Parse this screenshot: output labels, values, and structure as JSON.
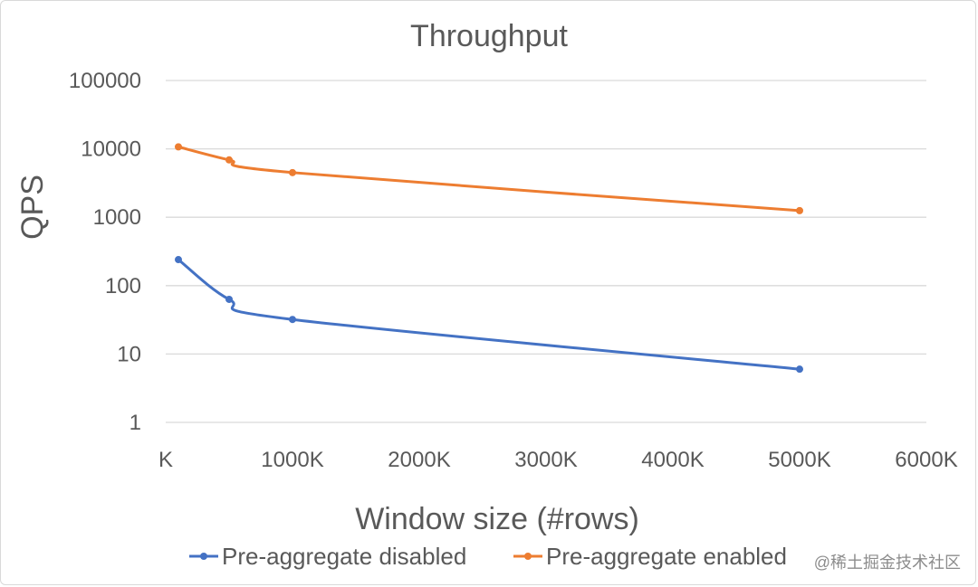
{
  "chart_data": {
    "type": "line",
    "title": "Throughput",
    "xlabel": "Window size (#rows)",
    "ylabel": "QPS",
    "yscale": "log",
    "ylim": [
      1,
      100000
    ],
    "xlim": [
      0,
      6000
    ],
    "y_ticks": [
      "1",
      "10",
      "100",
      "1000",
      "10000",
      "100000"
    ],
    "x_ticks": [
      {
        "value": 0,
        "label": "K"
      },
      {
        "value": 1000,
        "label": "1000K"
      },
      {
        "value": 2000,
        "label": "2000K"
      },
      {
        "value": 3000,
        "label": "3000K"
      },
      {
        "value": 4000,
        "label": "4000K"
      },
      {
        "value": 5000,
        "label": "5000K"
      },
      {
        "value": 6000,
        "label": "6000K"
      }
    ],
    "grid": true,
    "legend_position": "bottom",
    "series": [
      {
        "name": "Pre-aggregate disabled",
        "color": "#4472c4",
        "x": [
          100,
          500,
          1000,
          5000
        ],
        "y": [
          240,
          63,
          32,
          6
        ]
      },
      {
        "name": "Pre-aggregate enabled",
        "color": "#ed7d31",
        "x": [
          100,
          500,
          1000,
          5000
        ],
        "y": [
          10700,
          6900,
          4500,
          1250
        ]
      }
    ]
  },
  "watermark": "@稀土掘金技术社区"
}
